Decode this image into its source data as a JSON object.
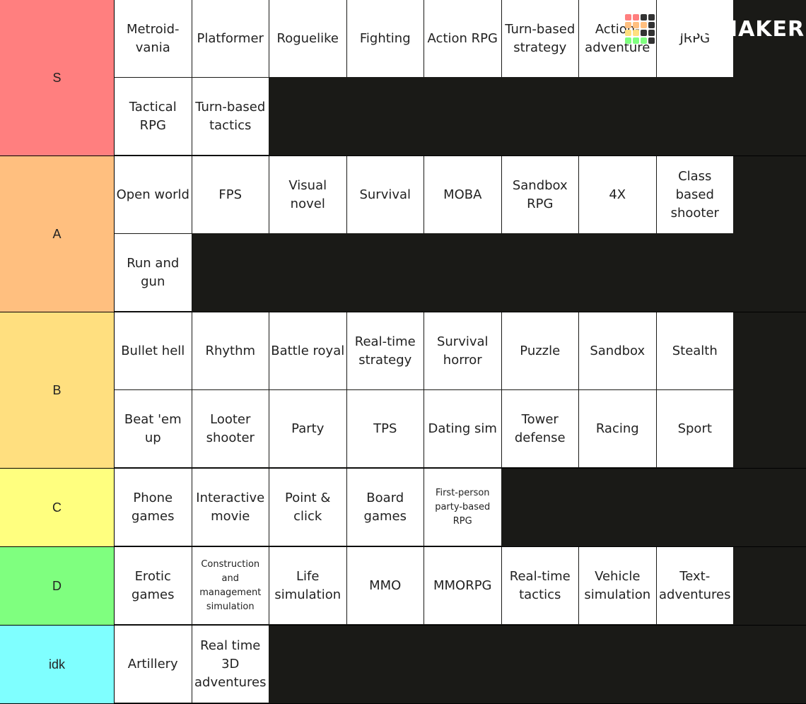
{
  "logo": "TIERMAKER",
  "tiers": [
    {
      "label": "S",
      "color": "#ff7f7f",
      "items": [
        "Metroid-vania",
        "Platformer",
        "Roguelike",
        "Fighting",
        "Action RPG",
        "Turn-based strategy",
        "Action-adventure",
        "JRPG",
        "Tactical RPG",
        "Turn-based tactics"
      ]
    },
    {
      "label": "A",
      "color": "#ffbf7f",
      "items": [
        "Open world",
        "FPS",
        "Visual novel",
        "Survival",
        "MOBA",
        "Sandbox RPG",
        "4X",
        "Class based shooter",
        "Run and gun"
      ]
    },
    {
      "label": "B",
      "color": "#ffdf7f",
      "items": [
        "Bullet hell",
        "Rhythm",
        "Battle royal",
        "Real-time strategy",
        "Survival horror",
        "Puzzle",
        "Sandbox",
        "Stealth",
        "Beat 'em up",
        "Looter shooter",
        "Party",
        "TPS",
        "Dating sim",
        "Tower defense",
        "Racing",
        "Sport"
      ]
    },
    {
      "label": "C",
      "color": "#ffff7f",
      "items": [
        "Phone games",
        "Interactive movie",
        "Point & click",
        "Board games",
        "First-person party-based RPG"
      ]
    },
    {
      "label": "D",
      "color": "#7fff7f",
      "items": [
        "Erotic games",
        "Construction and management simulation",
        "Life simulation",
        "MMO",
        "MMORPG",
        "Real-time tactics",
        "Vehicle simulation",
        "Text-adventures"
      ]
    },
    {
      "label": "idk",
      "color": "#7fffff",
      "items": [
        "Artillery",
        "Real time 3D adventures"
      ]
    }
  ]
}
